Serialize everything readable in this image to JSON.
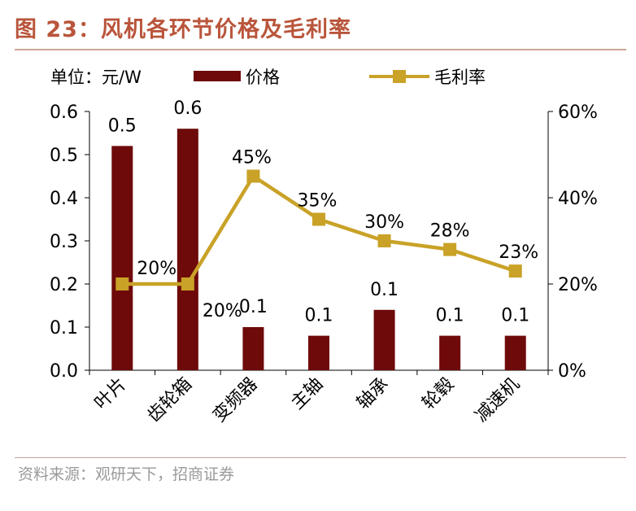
{
  "header": {
    "figure_title": "图 23：风机各环节价格及毛利率"
  },
  "footer": {
    "source": "资料来源：观研天下，招商证券"
  },
  "chart_data": {
    "type": "bar",
    "unit_label": "单位：元/W",
    "categories": [
      "叶片",
      "齿轮箱",
      "变频器",
      "主轴",
      "轴承",
      "轮毂",
      "减速机"
    ],
    "series": [
      {
        "name": "价格",
        "type": "bar",
        "axis": "left",
        "color": "#6e0a0a",
        "values": [
          0.52,
          0.56,
          0.1,
          0.08,
          0.14,
          0.08,
          0.08
        ],
        "labels": [
          "0.5",
          "0.6",
          "0.1",
          "0.1",
          "0.1",
          "0.1",
          "0.1"
        ]
      },
      {
        "name": "毛利率",
        "type": "line",
        "axis": "right",
        "color": "#c9a227",
        "values": [
          20,
          20,
          45,
          35,
          30,
          28,
          23
        ],
        "labels": [
          "20%",
          "20%",
          "45%",
          "35%",
          "30%",
          "28%",
          "23%"
        ]
      }
    ],
    "y_left": {
      "ylim": [
        0,
        0.6
      ],
      "ticks": [
        "0.0",
        "0.1",
        "0.2",
        "0.3",
        "0.4",
        "0.5",
        "0.6"
      ]
    },
    "y_right": {
      "ylim": [
        0,
        60
      ],
      "ticks": [
        "0%",
        "20%",
        "40%",
        "60%"
      ]
    },
    "legend_position": "top",
    "grid": false
  }
}
